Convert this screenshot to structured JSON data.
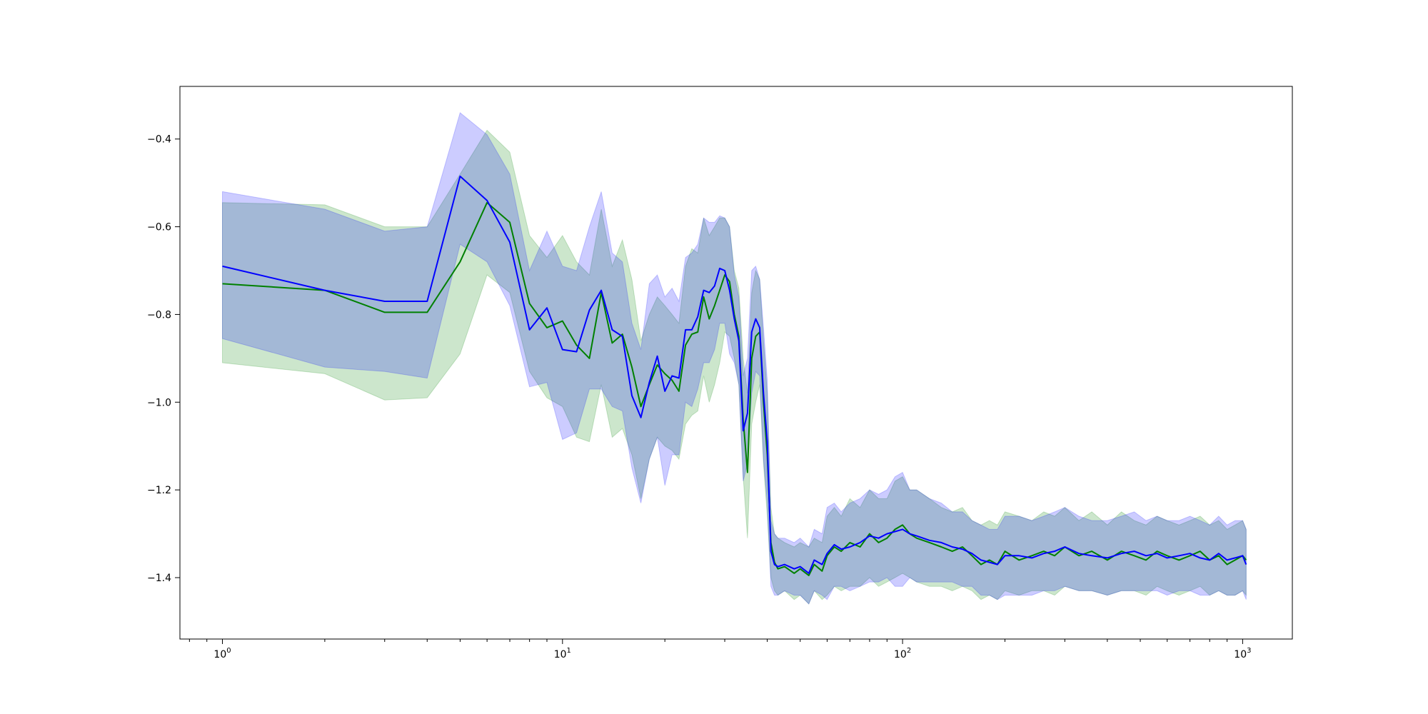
{
  "chart_data": {
    "type": "line",
    "title": "",
    "xlabel": "",
    "ylabel": "",
    "x_scale": "log",
    "xlim": [
      0.75,
      1400
    ],
    "ylim": [
      -1.54,
      -0.28
    ],
    "grid": false,
    "legend": "none",
    "x_ticks": [
      {
        "value": 1,
        "base": "10",
        "exp": "0"
      },
      {
        "value": 10,
        "base": "10",
        "exp": "1"
      },
      {
        "value": 100,
        "base": "10",
        "exp": "2"
      },
      {
        "value": 1000,
        "base": "10",
        "exp": "3"
      }
    ],
    "y_ticks": [
      {
        "value": -0.4,
        "label": "−0.4"
      },
      {
        "value": -0.6,
        "label": "−0.6"
      },
      {
        "value": -0.8,
        "label": "−0.8"
      },
      {
        "value": -1.0,
        "label": "−1.0"
      },
      {
        "value": -1.2,
        "label": "−1.2"
      },
      {
        "value": -1.4,
        "label": "−1.4"
      }
    ],
    "series": [
      {
        "color": "#008000",
        "band_opacity": 0.2,
        "x": [
          1,
          2,
          3,
          4,
          5,
          6,
          7,
          8,
          9,
          10,
          11,
          12,
          13,
          14,
          15,
          16,
          17,
          18,
          19,
          20,
          21,
          22,
          23,
          24,
          25,
          26,
          27,
          28,
          29,
          30,
          31,
          32,
          33,
          34,
          35,
          36,
          37,
          38,
          39,
          40,
          41,
          42,
          43,
          45,
          48,
          50,
          53,
          55,
          58,
          60,
          63,
          66,
          70,
          75,
          80,
          85,
          90,
          95,
          100,
          105,
          110,
          120,
          130,
          140,
          150,
          160,
          170,
          180,
          190,
          200,
          220,
          240,
          260,
          280,
          300,
          330,
          360,
          400,
          440,
          480,
          520,
          560,
          600,
          650,
          700,
          750,
          800,
          850,
          900,
          950,
          1000,
          1024
        ],
        "mean": [
          -0.73,
          -0.745,
          -0.795,
          -0.795,
          -0.68,
          -0.545,
          -0.59,
          -0.775,
          -0.83,
          -0.815,
          -0.87,
          -0.9,
          -0.75,
          -0.865,
          -0.845,
          -0.92,
          -1.01,
          -0.96,
          -0.915,
          -0.935,
          -0.95,
          -0.975,
          -0.87,
          -0.845,
          -0.84,
          -0.76,
          -0.81,
          -0.78,
          -0.745,
          -0.71,
          -0.725,
          -0.8,
          -0.85,
          -1.04,
          -1.16,
          -0.9,
          -0.85,
          -0.84,
          -1.0,
          -1.12,
          -1.32,
          -1.365,
          -1.38,
          -1.375,
          -1.39,
          -1.38,
          -1.395,
          -1.37,
          -1.385,
          -1.35,
          -1.33,
          -1.34,
          -1.32,
          -1.33,
          -1.3,
          -1.32,
          -1.31,
          -1.29,
          -1.28,
          -1.3,
          -1.31,
          -1.32,
          -1.33,
          -1.34,
          -1.33,
          -1.35,
          -1.37,
          -1.36,
          -1.37,
          -1.34,
          -1.36,
          -1.35,
          -1.34,
          -1.35,
          -1.33,
          -1.35,
          -1.34,
          -1.36,
          -1.34,
          -1.35,
          -1.36,
          -1.34,
          -1.35,
          -1.36,
          -1.35,
          -1.34,
          -1.36,
          -1.35,
          -1.37,
          -1.36,
          -1.35,
          -1.36
        ],
        "upper": [
          -0.545,
          -0.55,
          -0.6,
          -0.6,
          -0.48,
          -0.38,
          -0.43,
          -0.62,
          -0.67,
          -0.62,
          -0.68,
          -0.71,
          -0.56,
          -0.69,
          -0.63,
          -0.72,
          -0.86,
          -0.8,
          -0.76,
          -0.78,
          -0.8,
          -0.82,
          -0.69,
          -0.65,
          -0.66,
          -0.58,
          -0.62,
          -0.6,
          -0.58,
          -0.58,
          -0.6,
          -0.7,
          -0.74,
          -0.9,
          -0.98,
          -0.75,
          -0.7,
          -0.72,
          -0.86,
          -0.98,
          -1.24,
          -1.3,
          -1.31,
          -1.32,
          -1.33,
          -1.32,
          -1.33,
          -1.31,
          -1.32,
          -1.26,
          -1.24,
          -1.26,
          -1.22,
          -1.24,
          -1.2,
          -1.22,
          -1.22,
          -1.18,
          -1.17,
          -1.2,
          -1.2,
          -1.22,
          -1.24,
          -1.25,
          -1.24,
          -1.27,
          -1.28,
          -1.27,
          -1.28,
          -1.25,
          -1.26,
          -1.27,
          -1.25,
          -1.26,
          -1.24,
          -1.27,
          -1.25,
          -1.28,
          -1.25,
          -1.27,
          -1.28,
          -1.26,
          -1.27,
          -1.28,
          -1.27,
          -1.26,
          -1.28,
          -1.27,
          -1.29,
          -1.28,
          -1.27,
          -1.29
        ],
        "lower": [
          -0.91,
          -0.935,
          -0.995,
          -0.99,
          -0.89,
          -0.71,
          -0.75,
          -0.93,
          -0.99,
          -1.01,
          -1.08,
          -1.09,
          -0.96,
          -1.08,
          -1.06,
          -1.12,
          -1.22,
          -1.13,
          -1.08,
          -1.1,
          -1.11,
          -1.13,
          -1.05,
          -1.03,
          -1.02,
          -0.94,
          -1.0,
          -0.96,
          -0.91,
          -0.84,
          -0.85,
          -0.9,
          -0.96,
          -1.17,
          -1.31,
          -1.05,
          -1.0,
          -0.96,
          -1.14,
          -1.26,
          -1.4,
          -1.43,
          -1.44,
          -1.43,
          -1.45,
          -1.44,
          -1.46,
          -1.43,
          -1.45,
          -1.44,
          -1.42,
          -1.43,
          -1.42,
          -1.42,
          -1.4,
          -1.42,
          -1.41,
          -1.4,
          -1.39,
          -1.4,
          -1.41,
          -1.42,
          -1.42,
          -1.43,
          -1.42,
          -1.43,
          -1.45,
          -1.44,
          -1.45,
          -1.43,
          -1.44,
          -1.43,
          -1.43,
          -1.44,
          -1.42,
          -1.43,
          -1.43,
          -1.44,
          -1.43,
          -1.43,
          -1.44,
          -1.42,
          -1.43,
          -1.44,
          -1.43,
          -1.42,
          -1.44,
          -1.43,
          -1.44,
          -1.44,
          -1.43,
          -1.44
        ]
      },
      {
        "color": "#0000ff",
        "band_opacity": 0.2,
        "x": [
          1,
          2,
          3,
          4,
          5,
          6,
          7,
          8,
          9,
          10,
          11,
          12,
          13,
          14,
          15,
          16,
          17,
          18,
          19,
          20,
          21,
          22,
          23,
          24,
          25,
          26,
          27,
          28,
          29,
          30,
          31,
          32,
          33,
          34,
          35,
          36,
          37,
          38,
          39,
          40,
          41,
          42,
          43,
          45,
          48,
          50,
          53,
          55,
          58,
          60,
          63,
          66,
          70,
          75,
          80,
          85,
          90,
          95,
          100,
          105,
          110,
          120,
          130,
          140,
          150,
          160,
          170,
          180,
          190,
          200,
          220,
          240,
          260,
          280,
          300,
          330,
          360,
          400,
          440,
          480,
          520,
          560,
          600,
          650,
          700,
          750,
          800,
          850,
          900,
          950,
          1000,
          1024
        ],
        "mean": [
          -0.69,
          -0.745,
          -0.77,
          -0.77,
          -0.485,
          -0.54,
          -0.635,
          -0.835,
          -0.785,
          -0.88,
          -0.885,
          -0.79,
          -0.745,
          -0.835,
          -0.85,
          -0.985,
          -1.035,
          -0.955,
          -0.895,
          -0.975,
          -0.94,
          -0.945,
          -0.835,
          -0.835,
          -0.805,
          -0.745,
          -0.75,
          -0.735,
          -0.695,
          -0.7,
          -0.745,
          -0.81,
          -0.86,
          -1.065,
          -1.025,
          -0.84,
          -0.81,
          -0.83,
          -0.98,
          -1.09,
          -1.34,
          -1.37,
          -1.375,
          -1.37,
          -1.38,
          -1.375,
          -1.39,
          -1.36,
          -1.37,
          -1.345,
          -1.325,
          -1.335,
          -1.33,
          -1.32,
          -1.305,
          -1.31,
          -1.3,
          -1.295,
          -1.29,
          -1.3,
          -1.305,
          -1.315,
          -1.32,
          -1.33,
          -1.335,
          -1.345,
          -1.36,
          -1.365,
          -1.37,
          -1.35,
          -1.35,
          -1.355,
          -1.345,
          -1.34,
          -1.33,
          -1.345,
          -1.35,
          -1.355,
          -1.345,
          -1.34,
          -1.35,
          -1.345,
          -1.355,
          -1.35,
          -1.345,
          -1.355,
          -1.36,
          -1.345,
          -1.36,
          -1.355,
          -1.35,
          -1.37
        ],
        "upper": [
          -0.52,
          -0.56,
          -0.61,
          -0.6,
          -0.34,
          -0.39,
          -0.48,
          -0.7,
          -0.61,
          -0.69,
          -0.7,
          -0.6,
          -0.52,
          -0.66,
          -0.68,
          -0.82,
          -0.88,
          -0.73,
          -0.71,
          -0.76,
          -0.74,
          -0.77,
          -0.67,
          -0.66,
          -0.64,
          -0.58,
          -0.59,
          -0.59,
          -0.575,
          -0.58,
          -0.6,
          -0.71,
          -0.76,
          -0.94,
          -0.9,
          -0.7,
          -0.69,
          -0.72,
          -0.83,
          -0.95,
          -1.27,
          -1.3,
          -1.31,
          -1.31,
          -1.32,
          -1.31,
          -1.33,
          -1.29,
          -1.3,
          -1.24,
          -1.23,
          -1.25,
          -1.23,
          -1.22,
          -1.2,
          -1.21,
          -1.2,
          -1.17,
          -1.16,
          -1.2,
          -1.2,
          -1.22,
          -1.23,
          -1.25,
          -1.25,
          -1.27,
          -1.28,
          -1.29,
          -1.29,
          -1.26,
          -1.26,
          -1.27,
          -1.26,
          -1.25,
          -1.24,
          -1.26,
          -1.27,
          -1.27,
          -1.26,
          -1.25,
          -1.27,
          -1.26,
          -1.27,
          -1.27,
          -1.26,
          -1.27,
          -1.28,
          -1.26,
          -1.28,
          -1.27,
          -1.27,
          -1.29
        ],
        "lower": [
          -0.855,
          -0.92,
          -0.93,
          -0.945,
          -0.64,
          -0.68,
          -0.78,
          -0.965,
          -0.955,
          -1.085,
          -1.07,
          -0.97,
          -0.97,
          -1.01,
          -1.02,
          -1.15,
          -1.23,
          -1.13,
          -1.08,
          -1.19,
          -1.12,
          -1.12,
          -1.0,
          -1.01,
          -0.97,
          -0.91,
          -0.91,
          -0.88,
          -0.82,
          -0.82,
          -0.89,
          -0.91,
          -0.96,
          -1.18,
          -1.14,
          -0.98,
          -0.93,
          -0.94,
          -1.13,
          -1.23,
          -1.42,
          -1.44,
          -1.44,
          -1.43,
          -1.44,
          -1.44,
          -1.46,
          -1.43,
          -1.44,
          -1.45,
          -1.42,
          -1.42,
          -1.43,
          -1.42,
          -1.41,
          -1.41,
          -1.4,
          -1.42,
          -1.42,
          -1.4,
          -1.41,
          -1.41,
          -1.41,
          -1.41,
          -1.42,
          -1.42,
          -1.44,
          -1.44,
          -1.45,
          -1.44,
          -1.44,
          -1.44,
          -1.43,
          -1.43,
          -1.42,
          -1.43,
          -1.43,
          -1.44,
          -1.43,
          -1.43,
          -1.43,
          -1.43,
          -1.44,
          -1.43,
          -1.43,
          -1.44,
          -1.44,
          -1.43,
          -1.44,
          -1.44,
          -1.43,
          -1.45
        ]
      }
    ]
  }
}
